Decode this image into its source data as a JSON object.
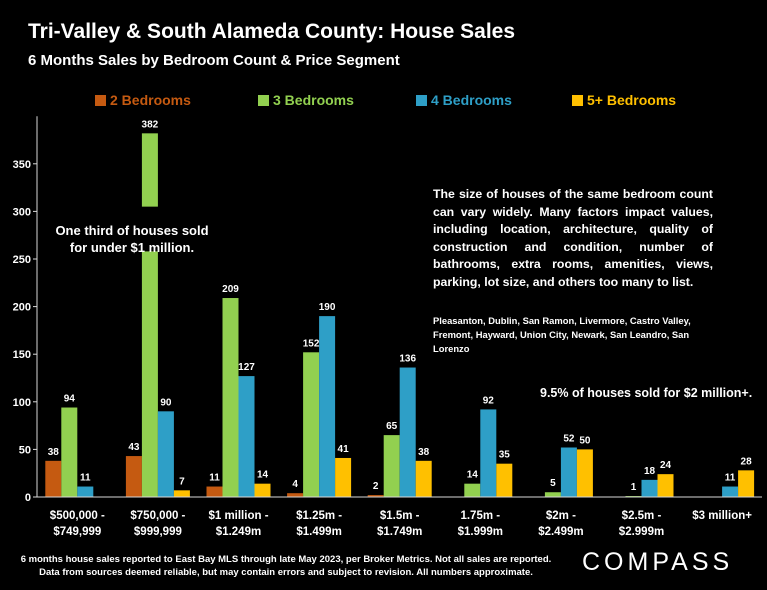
{
  "header": {
    "title": "Tri-Valley & South Alameda County: House Sales",
    "subtitle": "6 Months Sales by Bedroom Count & Price Segment"
  },
  "chart_data": {
    "type": "bar",
    "title": "Tri-Valley & South Alameda County: House Sales",
    "subtitle": "6 Months Sales by Bedroom Count & Price Segment",
    "xlabel": "",
    "ylabel": "",
    "ylim": [
      0,
      400
    ],
    "yticks": [
      0,
      50,
      100,
      150,
      200,
      250,
      300,
      350
    ],
    "grid": false,
    "legend_position": "top",
    "categories": [
      [
        "$500,000 -",
        "$749,999"
      ],
      [
        "$750,000 -",
        "$999,999"
      ],
      [
        "$1 million -",
        "$1.249m"
      ],
      [
        "$1.25m -",
        "$1.499m"
      ],
      [
        "$1.5m -",
        "$1.749m"
      ],
      [
        "1.75m -",
        "$1.999m"
      ],
      [
        "$2m -",
        "$2.499m"
      ],
      [
        "$2.5m -",
        "$2.999m"
      ],
      [
        "$3 million+"
      ]
    ],
    "series": [
      {
        "name": "2 Bedrooms",
        "color": "#c55a11",
        "values": [
          38,
          43,
          11,
          4,
          2,
          null,
          null,
          null,
          null
        ]
      },
      {
        "name": "3 Bedrooms",
        "color": "#92d050",
        "values": [
          94,
          382,
          209,
          152,
          65,
          14,
          5,
          1,
          null
        ]
      },
      {
        "name": "4 Bedrooms",
        "color": "#2e9fc7",
        "values": [
          11,
          90,
          127,
          190,
          136,
          92,
          52,
          18,
          11
        ]
      },
      {
        "name": "5+ Bedrooms",
        "color": "#ffc000",
        "values": [
          null,
          7,
          14,
          41,
          38,
          35,
          50,
          24,
          28
        ]
      }
    ]
  },
  "annotations": {
    "one_third": "One third of houses sold for under $1 million.",
    "house_size": "The size of houses of the same bedroom count can vary widely. Many factors impact values, including location, architecture, quality of construction and condition, number of bathrooms, extra rooms, amenities, views, parking, lot size, and others too many to list.",
    "cities": "Pleasanton, Dublin, San Ramon, Livermore, Castro Valley, Fremont, Hayward, Union City, Newark, San Leandro, San Lorenzo",
    "two_million": "9.5% of houses sold for $2 million+."
  },
  "footer": {
    "line1": "6 months house sales reported to East Bay MLS through late May 2023, per Broker Metrics. Not all sales are reported.",
    "line2": "Data from sources deemed reliable, but may contain errors and subject to revision. All numbers approximate.",
    "brand": "COMPASS"
  },
  "colors": {
    "background": "#000000",
    "axis": "#d9d9d9"
  }
}
